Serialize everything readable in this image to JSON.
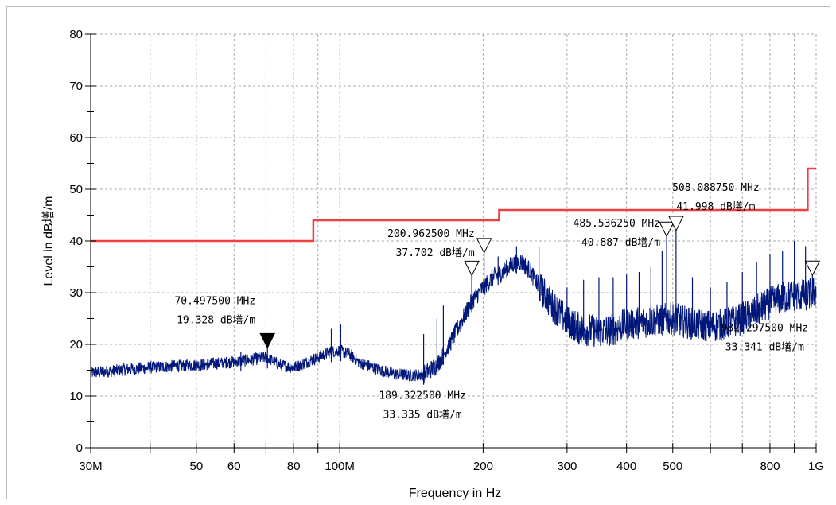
{
  "chart_data": {
    "type": "line",
    "title": "",
    "xlabel": "Frequency in Hz",
    "ylabel": "Level in dB墡/m",
    "x_scale": "log",
    "xlim": [
      30000000,
      1000000000
    ],
    "ylim": [
      0,
      80
    ],
    "grid": true,
    "y_ticks": [
      {
        "value": 0,
        "label": "0"
      },
      {
        "value": 10,
        "label": "10"
      },
      {
        "value": 20,
        "label": "20"
      },
      {
        "value": 30,
        "label": "30"
      },
      {
        "value": 40,
        "label": "40"
      },
      {
        "value": 50,
        "label": "50"
      },
      {
        "value": 60,
        "label": "60"
      },
      {
        "value": 70,
        "label": "70"
      },
      {
        "value": 80,
        "label": "80"
      }
    ],
    "x_ticks": [
      {
        "value": 30000000,
        "label": "30M"
      },
      {
        "value": 50000000,
        "label": "50"
      },
      {
        "value": 60000000,
        "label": "60"
      },
      {
        "value": 80000000,
        "label": "80"
      },
      {
        "value": 100000000,
        "label": "100M"
      },
      {
        "value": 200000000,
        "label": "200"
      },
      {
        "value": 300000000,
        "label": "300"
      },
      {
        "value": 400000000,
        "label": "400"
      },
      {
        "value": 500000000,
        "label": "500"
      },
      {
        "value": 800000000,
        "label": "800"
      },
      {
        "value": 1000000000,
        "label": "1G"
      }
    ],
    "x_grid": [
      30000000,
      40000000,
      50000000,
      60000000,
      70000000,
      80000000,
      90000000,
      100000000,
      200000000,
      300000000,
      400000000,
      500000000,
      600000000,
      700000000,
      800000000,
      900000000,
      1000000000
    ],
    "series": [
      {
        "role": "limit",
        "color": "#ef4040",
        "points": [
          [
            30000000,
            40
          ],
          [
            88000000,
            40
          ],
          [
            88000000,
            44
          ],
          [
            216000000,
            44
          ],
          [
            216000000,
            46
          ],
          [
            960000000,
            46
          ],
          [
            960000000,
            54
          ],
          [
            1000000000,
            54
          ]
        ]
      },
      {
        "role": "measurement",
        "color": "#00177a",
        "points": [
          [
            30000000,
            14.5
          ],
          [
            33000000,
            14.8
          ],
          [
            36000000,
            15.2
          ],
          [
            40000000,
            15.5
          ],
          [
            45000000,
            15.8
          ],
          [
            50000000,
            16.0
          ],
          [
            55000000,
            16.3
          ],
          [
            60000000,
            16.6
          ],
          [
            65000000,
            17.0
          ],
          [
            70000000,
            17.5
          ],
          [
            75000000,
            16.0
          ],
          [
            80000000,
            15.5
          ],
          [
            85000000,
            16.5
          ],
          [
            90000000,
            17.5
          ],
          [
            95000000,
            18.5
          ],
          [
            100000000,
            18.8
          ],
          [
            105000000,
            18.0
          ],
          [
            110000000,
            16.5
          ],
          [
            120000000,
            15.2
          ],
          [
            130000000,
            14.3
          ],
          [
            140000000,
            14.0
          ],
          [
            150000000,
            14.2
          ],
          [
            160000000,
            16.0
          ],
          [
            170000000,
            20.0
          ],
          [
            180000000,
            24.5
          ],
          [
            190000000,
            28.5
          ],
          [
            200000000,
            31.0
          ],
          [
            210000000,
            33.0
          ],
          [
            220000000,
            34.0
          ],
          [
            230000000,
            35.5
          ],
          [
            240000000,
            36.0
          ],
          [
            250000000,
            34.5
          ],
          [
            260000000,
            31.5
          ],
          [
            280000000,
            27.5
          ],
          [
            300000000,
            24.5
          ],
          [
            320000000,
            23.0
          ],
          [
            350000000,
            22.5
          ],
          [
            380000000,
            23.0
          ],
          [
            400000000,
            24.0
          ],
          [
            450000000,
            24.5
          ],
          [
            500000000,
            25.0
          ],
          [
            550000000,
            24.0
          ],
          [
            600000000,
            23.5
          ],
          [
            650000000,
            24.0
          ],
          [
            700000000,
            25.0
          ],
          [
            750000000,
            26.5
          ],
          [
            800000000,
            28.0
          ],
          [
            850000000,
            29.0
          ],
          [
            900000000,
            29.5
          ],
          [
            950000000,
            29.5
          ],
          [
            1000000000,
            30.0
          ]
        ],
        "spikes": [
          [
            62000000,
            18.5
          ],
          [
            70500000,
            19.3
          ],
          [
            96000000,
            23.0
          ],
          [
            100500000,
            24.0
          ],
          [
            150000000,
            22.0
          ],
          [
            160000000,
            25.0
          ],
          [
            165000000,
            27.5
          ],
          [
            189300000,
            33.3
          ],
          [
            200900000,
            37.7
          ],
          [
            215000000,
            37.0
          ],
          [
            235000000,
            39.0
          ],
          [
            262000000,
            39.0
          ],
          [
            300000000,
            31.0
          ],
          [
            325000000,
            32.5
          ],
          [
            350000000,
            33.0
          ],
          [
            375000000,
            33.0
          ],
          [
            400000000,
            33.5
          ],
          [
            425000000,
            34.0
          ],
          [
            450000000,
            35.0
          ],
          [
            475000000,
            38.0
          ],
          [
            485500000,
            40.9
          ],
          [
            508100000,
            42.0
          ],
          [
            550000000,
            33.0
          ],
          [
            600000000,
            31.0
          ],
          [
            650000000,
            32.0
          ],
          [
            700000000,
            34.0
          ],
          [
            750000000,
            36.0
          ],
          [
            800000000,
            37.5
          ],
          [
            850000000,
            38.0
          ],
          [
            900000000,
            40.0
          ],
          [
            950000000,
            39.0
          ],
          [
            982300000,
            33.3
          ]
        ]
      }
    ],
    "markers": [
      {
        "freq": 70497500,
        "level": 19.328,
        "filled": true,
        "freq_label": "70.497500 MHz",
        "level_label": "19.328 dB墡/m",
        "label_anchor": "end",
        "label_dx": -15,
        "label_dy": -55
      },
      {
        "freq": 189322500,
        "level": 33.335,
        "filled": false,
        "freq_label": "189.322500 MHz",
        "level_label": "33.335 dB墡/m",
        "label_anchor": "middle",
        "label_dx": -62,
        "label_dy": 155
      },
      {
        "freq": 200962500,
        "level": 37.702,
        "filled": false,
        "freq_label": "200.962500 MHz",
        "level_label": "37.702 dB墡/m",
        "label_anchor": "end",
        "label_dx": -12,
        "label_dy": -20
      },
      {
        "freq": 485536250,
        "level": 40.887,
        "filled": false,
        "freq_label": "485.536250 MHz",
        "level_label": "40.887 dB墡/m",
        "label_anchor": "end",
        "label_dx": -8,
        "label_dy": -12
      },
      {
        "freq": 508088750,
        "level": 41.998,
        "filled": false,
        "freq_label": "508.088750 MHz",
        "level_label": "41.998 dB墡/m",
        "label_anchor": "middle",
        "label_dx": 50,
        "label_dy": -50
      },
      {
        "freq": 982297500,
        "level": 33.341,
        "filled": false,
        "freq_label": "982.297500 MHz",
        "level_label": "33.341 dB墡/m",
        "label_anchor": "middle",
        "label_dx": -60,
        "label_dy": 70
      }
    ]
  }
}
